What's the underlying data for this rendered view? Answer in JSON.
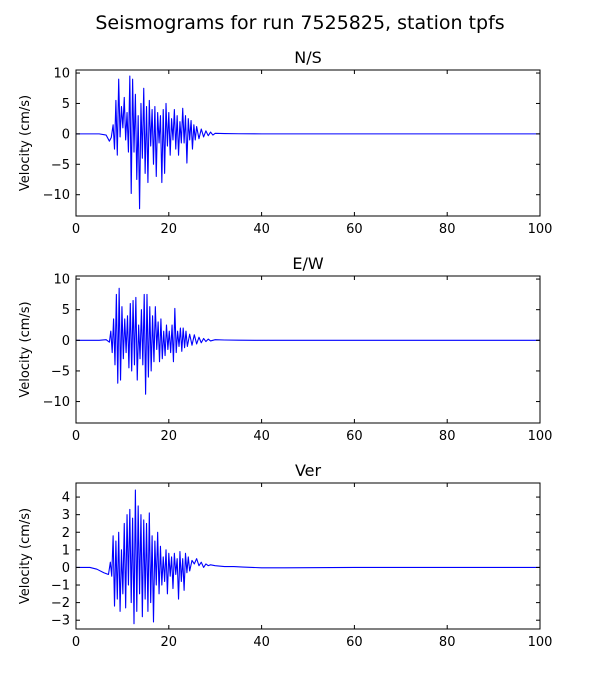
{
  "chart_data": {
    "type": "line",
    "title": "Seismograms for run 7525825, station tpfs",
    "line_color": "#0000ff",
    "grid": false,
    "panels": [
      {
        "title": "N/S",
        "ylabel": "Velocity (cm/s)",
        "xlim": [
          0,
          100
        ],
        "ylim": [
          -13.5,
          10.5
        ],
        "xticks": [
          0,
          20,
          40,
          60,
          80,
          100
        ],
        "yticks": [
          -10,
          -5,
          0,
          5,
          10
        ],
        "series": [
          {
            "x": [
              0,
              5,
              6.5,
              7.2,
              7.6,
              8.0,
              8.3,
              8.6,
              8.9,
              9.2,
              9.5,
              9.8,
              10.1,
              10.4,
              10.7,
              11.0,
              11.3,
              11.6,
              11.9,
              12.2,
              12.5,
              12.8,
              13.1,
              13.4,
              13.7,
              14.0,
              14.3,
              14.6,
              14.9,
              15.2,
              15.5,
              15.8,
              16.1,
              16.4,
              16.7,
              17.0,
              17.3,
              17.6,
              17.9,
              18.2,
              18.5,
              18.8,
              19.1,
              19.4,
              19.7,
              20.0,
              20.3,
              20.6,
              20.9,
              21.2,
              21.5,
              21.8,
              22.1,
              22.4,
              22.7,
              23.0,
              23.3,
              23.6,
              23.9,
              24.2,
              24.5,
              24.8,
              25.1,
              25.4,
              25.7,
              26.0,
              26.5,
              27.0,
              27.5,
              28.0,
              28.5,
              29.0,
              29.5,
              30,
              32,
              35,
              40,
              60,
              80,
              100
            ],
            "y": [
              0,
              0,
              -0.2,
              -1.2,
              -0.6,
              1.5,
              -2.5,
              5.5,
              -3.5,
              9.0,
              -0.5,
              4.5,
              1.0,
              6.0,
              -1.0,
              3.5,
              -3.0,
              9.5,
              -9.8,
              9.0,
              -3.0,
              6.5,
              -7.5,
              3.0,
              -12.3,
              5.0,
              -4.0,
              7.5,
              -6.5,
              4.5,
              -8.0,
              5.5,
              -2.0,
              4.0,
              -5.0,
              4.5,
              -7.0,
              3.5,
              -1.5,
              3.0,
              -8.0,
              4.0,
              -6.5,
              5.0,
              -2.0,
              3.5,
              -3.5,
              2.5,
              -1.0,
              4.0,
              -2.5,
              3.0,
              -3.5,
              2.0,
              -1.5,
              4.2,
              -1.5,
              3.0,
              -4.8,
              2.5,
              -1.0,
              2.2,
              -2.5,
              1.5,
              -1.0,
              1.2,
              -0.8,
              0.8,
              -0.5,
              0.5,
              -0.3,
              0.3,
              -0.2,
              0.1,
              0.05,
              0.02,
              0,
              0,
              0,
              0
            ]
          }
        ]
      },
      {
        "title": "E/W",
        "ylabel": "Velocity (cm/s)",
        "xlim": [
          0,
          100
        ],
        "ylim": [
          -13.5,
          10.5
        ],
        "xticks": [
          0,
          20,
          40,
          60,
          80,
          100
        ],
        "yticks": [
          -10,
          -5,
          0,
          5,
          10
        ],
        "series": [
          {
            "x": [
              0,
              5,
              6.5,
              7.2,
              7.5,
              7.8,
              8.1,
              8.4,
              8.7,
              9.0,
              9.3,
              9.6,
              9.9,
              10.2,
              10.5,
              10.8,
              11.1,
              11.4,
              11.7,
              12.0,
              12.3,
              12.6,
              12.9,
              13.2,
              13.5,
              13.8,
              14.1,
              14.4,
              14.7,
              15.0,
              15.3,
              15.6,
              15.9,
              16.2,
              16.5,
              16.8,
              17.1,
              17.4,
              17.7,
              18.0,
              18.3,
              18.6,
              18.9,
              19.2,
              19.5,
              19.8,
              20.1,
              20.4,
              20.7,
              21.0,
              21.3,
              21.6,
              21.9,
              22.2,
              22.5,
              22.8,
              23.1,
              23.4,
              23.7,
              24.0,
              24.5,
              25.0,
              25.5,
              26.0,
              26.5,
              27.0,
              27.5,
              28.0,
              28.5,
              29.0,
              30,
              32,
              35,
              40,
              60,
              80,
              100
            ],
            "y": [
              0,
              0,
              0.1,
              -0.3,
              1.5,
              -2.0,
              3.5,
              -4.0,
              7.5,
              -7.0,
              8.5,
              -6.5,
              5.5,
              -3.0,
              3.5,
              -2.0,
              4.0,
              -4.5,
              6.0,
              -5.0,
              6.5,
              -4.0,
              7.0,
              -6.5,
              2.5,
              -3.0,
              5.0,
              -4.0,
              7.5,
              -8.8,
              7.5,
              -6.0,
              5.5,
              -5.0,
              4.0,
              -3.5,
              5.5,
              -1.5,
              3.0,
              -3.5,
              3.5,
              -3.0,
              1.5,
              -2.5,
              2.5,
              -1.5,
              1.5,
              -2.0,
              2.5,
              -3.5,
              5.2,
              -2.0,
              1.5,
              -1.0,
              2.0,
              -1.8,
              2.0,
              -1.2,
              1.5,
              -1.0,
              1.0,
              -0.8,
              0.9,
              -0.6,
              0.5,
              -0.4,
              0.3,
              -0.2,
              0.2,
              -0.1,
              0.1,
              0.05,
              0.02,
              0,
              0,
              0,
              0
            ]
          }
        ]
      },
      {
        "title": "Ver",
        "ylabel": "Velocity (cm/s)",
        "xlim": [
          0,
          100
        ],
        "ylim": [
          -3.5,
          4.8
        ],
        "xticks": [
          0,
          20,
          40,
          60,
          80,
          100
        ],
        "yticks": [
          -3,
          -2,
          -1,
          0,
          1,
          2,
          3,
          4
        ],
        "series": [
          {
            "x": [
              0,
              3.0,
              4.5,
              6.0,
              7.0,
              7.4,
              7.7,
              8.0,
              8.3,
              8.6,
              8.9,
              9.2,
              9.5,
              9.8,
              10.1,
              10.4,
              10.7,
              11.0,
              11.3,
              11.6,
              11.9,
              12.2,
              12.5,
              12.8,
              13.1,
              13.4,
              13.7,
              14.0,
              14.3,
              14.6,
              14.9,
              15.2,
              15.5,
              15.8,
              16.1,
              16.4,
              16.7,
              17.0,
              17.3,
              17.6,
              17.9,
              18.2,
              18.5,
              18.8,
              19.1,
              19.4,
              19.7,
              20.0,
              20.3,
              20.6,
              20.9,
              21.2,
              21.5,
              21.8,
              22.1,
              22.4,
              22.7,
              23.0,
              23.3,
              23.6,
              23.9,
              24.2,
              24.5,
              25.0,
              25.5,
              26.0,
              26.5,
              27.0,
              27.5,
              28.0,
              28.5,
              29.0,
              30,
              32,
              34,
              36,
              38,
              40,
              45,
              60,
              80,
              100
            ],
            "y": [
              0,
              0,
              -0.1,
              -0.3,
              -0.4,
              0.3,
              -0.5,
              1.8,
              -2.2,
              1.5,
              -1.8,
              2.0,
              -2.5,
              1.0,
              -1.5,
              2.5,
              -2.3,
              3.0,
              -1.0,
              3.3,
              -2.0,
              2.8,
              -3.2,
              4.4,
              -2.5,
              3.5,
              -1.5,
              3.0,
              -2.8,
              2.7,
              -1.8,
              2.5,
              -2.5,
              3.1,
              -2.0,
              1.8,
              -3.1,
              1.5,
              -1.0,
              2.0,
              -1.5,
              1.2,
              -1.0,
              0.6,
              -0.8,
              1.0,
              -1.5,
              0.8,
              -0.5,
              0.6,
              -1.2,
              0.8,
              -0.4,
              0.5,
              -1.8,
              0.9,
              -0.8,
              0.5,
              -1.3,
              0.8,
              -0.3,
              0.6,
              -0.2,
              0.4,
              0.2,
              0.5,
              0.1,
              0.3,
              0.0,
              0.2,
              0.1,
              0.15,
              0.1,
              0.05,
              0.05,
              0.02,
              0.0,
              -0.02,
              -0.02,
              0,
              0,
              0
            ]
          }
        ]
      }
    ]
  }
}
